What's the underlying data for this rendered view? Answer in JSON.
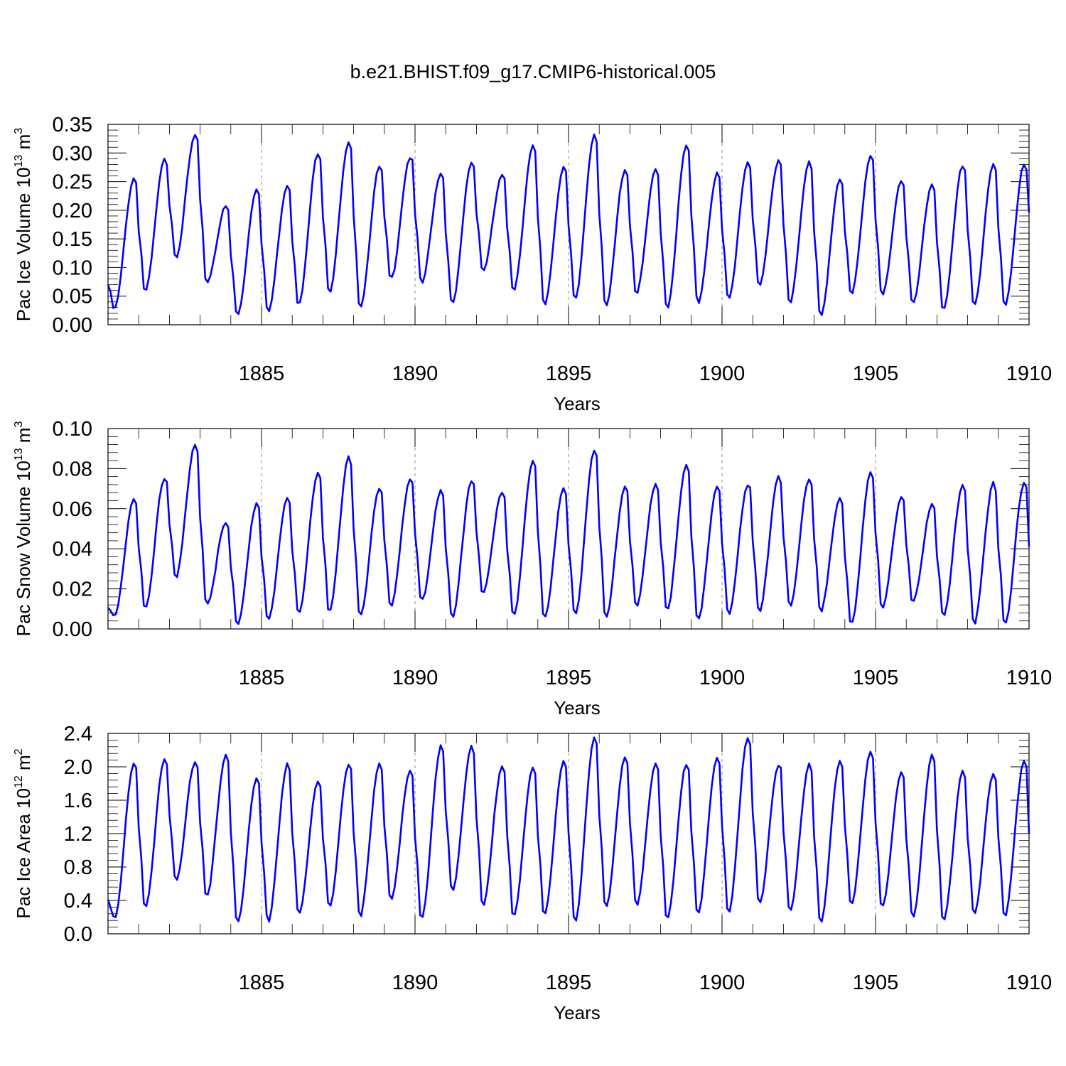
{
  "title": "b.e21.BHIST.f09_g17.CMIP6-historical.005",
  "colors": {
    "line": "#0000ff",
    "axis": "#000000",
    "grid": "#888888"
  },
  "chart_data": [
    {
      "type": "line",
      "ylabel": "Pac Ice Volume 10",
      "ylabel_sup": "13",
      "ylabel_unit": " m",
      "ylabel_unit_sup": "3",
      "xlabel": "Years",
      "xlim": [
        1880.0,
        1910.0
      ],
      "ylim": [
        0.0,
        0.35
      ],
      "yticks": [
        "0.00",
        "0.05",
        "0.10",
        "0.15",
        "0.20",
        "0.25",
        "0.30",
        "0.35"
      ],
      "xticks": [
        "1885",
        "1890",
        "1895",
        "1900",
        "1905",
        "1910"
      ],
      "grid_x": [
        1885,
        1890,
        1895,
        1900,
        1905
      ],
      "base": 0.035,
      "peaks": [
        0.258,
        0.29,
        0.333,
        0.208,
        0.241,
        0.247,
        0.303,
        0.318,
        0.277,
        0.295,
        0.268,
        0.286,
        0.262,
        0.313,
        0.278,
        0.336,
        0.274,
        0.272,
        0.315,
        0.266,
        0.287,
        0.291,
        0.286,
        0.254,
        0.296,
        0.255,
        0.248,
        0.281
      ],
      "troughs": [
        0.028,
        0.058,
        0.12,
        0.075,
        0.017,
        0.022,
        0.035,
        0.058,
        0.032,
        0.08,
        0.072,
        0.035,
        0.095,
        0.062,
        0.035,
        0.042,
        0.03,
        0.055,
        0.03,
        0.038,
        0.045,
        0.065,
        0.04,
        0.018,
        0.055,
        0.05,
        0.035,
        0.025,
        0.035
      ],
      "start_value": 0.072,
      "end_value": 0.196
    },
    {
      "type": "line",
      "ylabel": "Pac Snow Volume 10",
      "ylabel_sup": "13",
      "ylabel_unit": " m",
      "ylabel_unit_sup": "3",
      "xlabel": "Years",
      "xlim": [
        1880.0,
        1910.0
      ],
      "ylim": [
        0.0,
        0.1
      ],
      "yticks": [
        "0.00",
        "0.02",
        "0.04",
        "0.06",
        "0.08",
        "0.10"
      ],
      "xticks": [
        "1885",
        "1890",
        "1895",
        "1900",
        "1905",
        "1910"
      ],
      "grid_x": [
        1885,
        1890,
        1895,
        1900,
        1905
      ],
      "base": 0.01,
      "peaks": [
        0.066,
        0.076,
        0.092,
        0.053,
        0.063,
        0.066,
        0.079,
        0.086,
        0.07,
        0.075,
        0.07,
        0.075,
        0.069,
        0.084,
        0.07,
        0.09,
        0.072,
        0.073,
        0.082,
        0.071,
        0.073,
        0.077,
        0.076,
        0.065,
        0.078,
        0.066,
        0.063,
        0.073
      ],
      "troughs": [
        0.006,
        0.01,
        0.026,
        0.013,
        0.003,
        0.004,
        0.007,
        0.008,
        0.007,
        0.012,
        0.014,
        0.005,
        0.018,
        0.007,
        0.006,
        0.007,
        0.005,
        0.011,
        0.01,
        0.005,
        0.008,
        0.008,
        0.011,
        0.009,
        0.003,
        0.011,
        0.013,
        0.006,
        0.003,
        0.003
      ],
      "start_value": 0.011,
      "end_value": 0.041
    },
    {
      "type": "line",
      "ylabel": "Pac Ice Area 10",
      "ylabel_sup": "12",
      "ylabel_unit": " m",
      "ylabel_unit_sup": "2",
      "xlabel": "Years",
      "xlim": [
        1880.0,
        1910.0
      ],
      "ylim": [
        0.0,
        2.4
      ],
      "yticks": [
        "0.0",
        "0.4",
        "0.8",
        "1.2",
        "1.6",
        "2.0",
        "2.4"
      ],
      "xticks": [
        "1885",
        "1890",
        "1895",
        "1900",
        "1905",
        "1910"
      ],
      "grid_x": [
        1885,
        1890,
        1895,
        1900,
        1905
      ],
      "base": 0.25,
      "peaks": [
        2.06,
        2.12,
        2.08,
        2.14,
        1.86,
        2.04,
        1.85,
        2.06,
        2.04,
        1.96,
        2.26,
        2.27,
        2.04,
        2.0,
        2.07,
        2.35,
        2.14,
        2.06,
        2.05,
        2.12,
        2.35,
        2.05,
        2.06,
        2.1,
        2.18,
        1.93,
        2.15,
        1.97,
        1.94,
        2.07
      ],
      "troughs": [
        0.19,
        0.3,
        0.63,
        0.46,
        0.14,
        0.15,
        0.22,
        0.31,
        0.22,
        0.43,
        0.19,
        0.5,
        0.33,
        0.2,
        0.24,
        0.15,
        0.31,
        0.33,
        0.18,
        0.25,
        0.27,
        0.35,
        0.25,
        0.12,
        0.36,
        0.33,
        0.2,
        0.14,
        0.22
      ],
      "start_value": 0.4,
      "end_value": 1.2
    }
  ]
}
